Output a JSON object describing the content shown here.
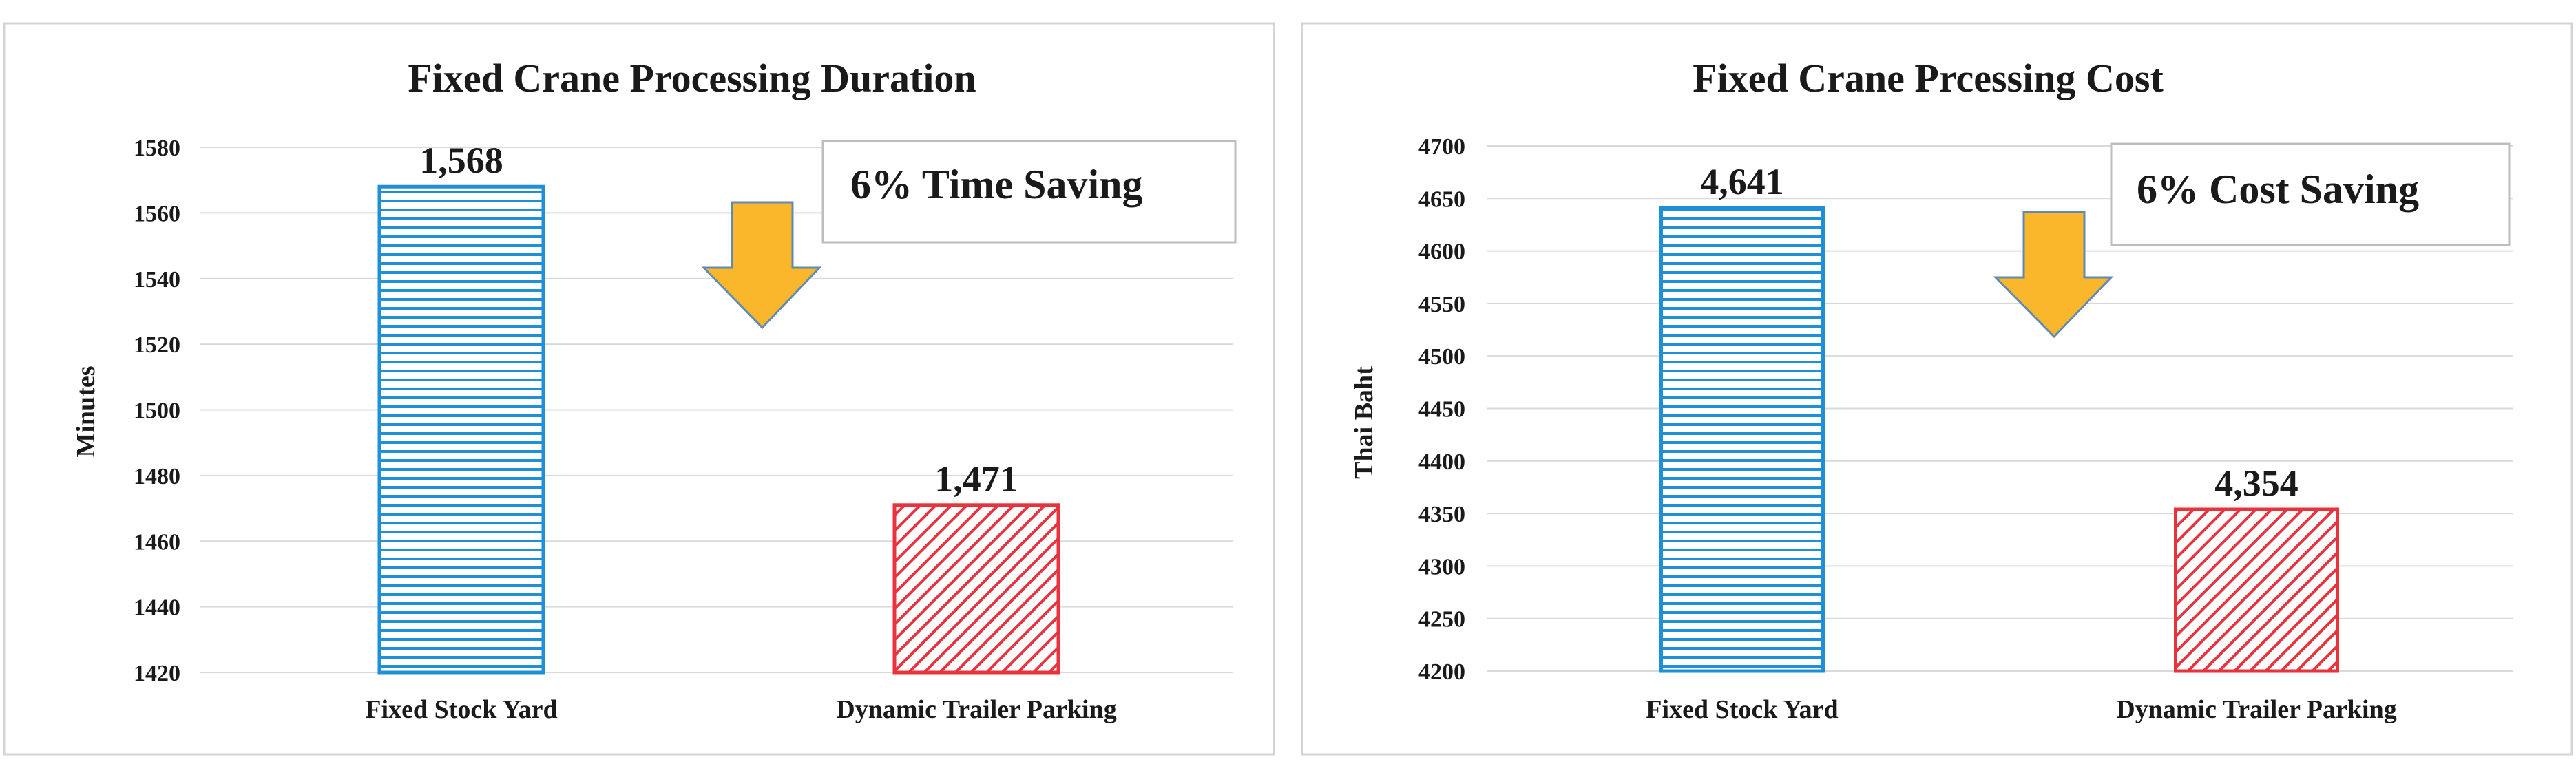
{
  "chart_data": [
    {
      "type": "bar",
      "title": "Fixed Crane Processing Duration",
      "ylabel": "Minutes",
      "xlabel": "",
      "categories": [
        "Fixed Stock Yard",
        "Dynamic Trailer Parking"
      ],
      "values": [
        1568,
        1471
      ],
      "value_labels": [
        "1,568",
        "1,471"
      ],
      "ylim": [
        1420,
        1580
      ],
      "ytick_step": 20,
      "grid": true,
      "bar_colors": [
        "#1f8fd6",
        "#e8333c"
      ],
      "bar_patterns": [
        "horizontal-lines",
        "diagonal-hatch"
      ],
      "callout": "6% Time Saving",
      "arrow": "down-arrow-icon",
      "arrow_color": "#fbb72c"
    },
    {
      "type": "bar",
      "title": "Fixed Crane Prcessing Cost",
      "ylabel": "Thai Baht",
      "xlabel": "",
      "categories": [
        "Fixed Stock Yard",
        "Dynamic Trailer Parking"
      ],
      "values": [
        4641,
        4354
      ],
      "value_labels": [
        "4,641",
        "4,354"
      ],
      "ylim": [
        4200,
        4700
      ],
      "ytick_step": 50,
      "grid": true,
      "bar_colors": [
        "#1f8fd6",
        "#e8333c"
      ],
      "bar_patterns": [
        "horizontal-lines",
        "diagonal-hatch"
      ],
      "callout": "6% Cost Saving",
      "arrow": "down-arrow-icon",
      "arrow_color": "#fbb72c"
    }
  ]
}
